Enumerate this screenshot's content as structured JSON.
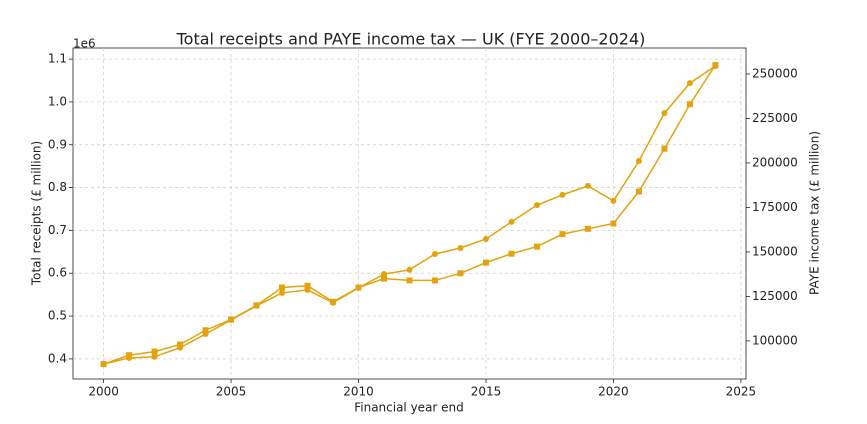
{
  "chart_data": {
    "type": "line",
    "title": "Total receipts and PAYE income tax — UK (FYE 2000–2024)",
    "x_label": "Financial year end",
    "y_label": "Total receipts (£ million)",
    "y2_label": "PAYE income tax (£ million)",
    "y_offset_label": "1e6",
    "x": [
      2000,
      2001,
      2002,
      2003,
      2004,
      2005,
      2006,
      2007,
      2008,
      2009,
      2010,
      2011,
      2012,
      2013,
      2014,
      2015,
      2016,
      2017,
      2018,
      2019,
      2020,
      2021,
      2022,
      2023,
      2024
    ],
    "series": [
      {
        "name": "Total receipts",
        "color": "#e3a30e",
        "marker": "circle",
        "values": [
          0.388,
          0.402,
          0.405,
          0.426,
          0.458,
          0.491,
          0.524,
          0.554,
          0.561,
          0.531,
          0.566,
          0.598,
          0.608,
          0.645,
          0.659,
          0.68,
          0.72,
          0.759,
          0.783,
          0.804,
          0.769,
          0.862,
          0.974,
          1.044,
          1.084
        ]
      },
      {
        "name": "PAYE income tax",
        "color": "#e3a30e",
        "marker": "square",
        "axis": "y2",
        "values": [
          87000,
          92000,
          94000,
          98000,
          106000,
          112000,
          120000,
          130000,
          131000,
          122000,
          130000,
          135000,
          134000,
          134000,
          138000,
          144000,
          149000,
          153000,
          160000,
          163000,
          166000,
          184000,
          208000,
          233000,
          255000
        ]
      }
    ],
    "xlim": [
      1998.8,
      2025.2
    ],
    "xticks": [
      2000,
      2005,
      2010,
      2015,
      2020,
      2025
    ],
    "ylim": [
      0.353,
      1.126
    ],
    "yticks": [
      0.4,
      0.5,
      0.6,
      0.7,
      0.8,
      0.9,
      {
        "value": 1.0,
        "label": "1.0"
      },
      1.1
    ],
    "y2lim": [
      78600,
      264600
    ],
    "y2ticks": [
      100000,
      125000,
      150000,
      175000,
      200000,
      225000,
      250000
    ],
    "grid": true
  }
}
